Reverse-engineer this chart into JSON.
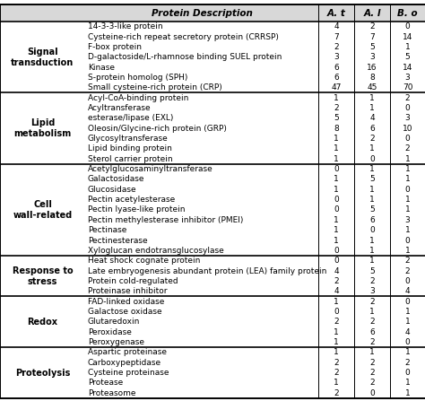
{
  "header": [
    "Protein Description",
    "A. t",
    "A. l",
    "B. o"
  ],
  "categories": [
    {
      "name": "Signal\ntransduction",
      "rows": [
        [
          "14-3-3-like protein",
          "4",
          "2",
          "0"
        ],
        [
          "Cysteine-rich repeat secretory protein (CRRSP)",
          "7",
          "7",
          "14"
        ],
        [
          "F-box protein",
          "2",
          "5",
          "1"
        ],
        [
          "D-galactoside/L-rhamnose binding SUEL protein",
          "3",
          "3",
          "5"
        ],
        [
          "Kinase",
          "6",
          "16",
          "14"
        ],
        [
          "S-protein homolog (SPH)",
          "6",
          "8",
          "3"
        ],
        [
          "Small cysteine-rich protein (CRP)",
          "47",
          "45",
          "70"
        ]
      ]
    },
    {
      "name": "Lipid\nmetabolism",
      "rows": [
        [
          "Acyl-CoA-binding protein",
          "1",
          "1",
          "2"
        ],
        [
          "Acyltransferase",
          "2",
          "1",
          "0"
        ],
        [
          "esterase/lipase (EXL)",
          "5",
          "4",
          "3"
        ],
        [
          "Oleosin/Glycine-rich protein (GRP)",
          "8",
          "6",
          "10"
        ],
        [
          "Glycosyltransferase",
          "1",
          "2",
          "0"
        ],
        [
          "Lipid binding protein",
          "1",
          "1",
          "2"
        ],
        [
          "Sterol carrier protein",
          "1",
          "0",
          "1"
        ]
      ]
    },
    {
      "name": "Cell\nwall-related",
      "rows": [
        [
          "Acetylglucosaminyltransferase",
          "0",
          "1",
          "1"
        ],
        [
          "Galactosidase",
          "1",
          "5",
          "1"
        ],
        [
          "Glucosidase",
          "1",
          "1",
          "0"
        ],
        [
          "Pectin acetylesterase",
          "0",
          "1",
          "1"
        ],
        [
          "Pectin lyase-like protein",
          "0",
          "5",
          "1"
        ],
        [
          "Pectin methylesterase inhibitor (PMEI)",
          "1",
          "6",
          "3"
        ],
        [
          "Pectinase",
          "1",
          "0",
          "1"
        ],
        [
          "Pectinesterase",
          "1",
          "1",
          "0"
        ],
        [
          "Xyloglucan endotransglucosylase",
          "0",
          "1",
          "1"
        ]
      ]
    },
    {
      "name": "Response to\nstress",
      "rows": [
        [
          "Heat shock cognate protein",
          "0",
          "1",
          "2"
        ],
        [
          "Late embryogenesis abundant protein (LEA) family protein",
          "4",
          "5",
          "2"
        ],
        [
          "Protein cold-regulated",
          "2",
          "2",
          "0"
        ],
        [
          "Proteinase inhibitor",
          "4",
          "3",
          "4"
        ]
      ]
    },
    {
      "name": "Redox",
      "rows": [
        [
          "FAD-linked oxidase",
          "1",
          "2",
          "0"
        ],
        [
          "Galactose oxidase",
          "0",
          "1",
          "1"
        ],
        [
          "Glutaredoxin",
          "2",
          "2",
          "1"
        ],
        [
          "Peroxidase",
          "1",
          "6",
          "4"
        ],
        [
          "Peroxygenase",
          "1",
          "2",
          "0"
        ]
      ]
    },
    {
      "name": "Proteolysis",
      "rows": [
        [
          "Aspartic proteinase",
          "1",
          "1",
          "1"
        ],
        [
          "Carboxypeptidase",
          "2",
          "2",
          "2"
        ],
        [
          "Cysteine proteinase",
          "2",
          "2",
          "0"
        ],
        [
          "Protease",
          "1",
          "2",
          "1"
        ],
        [
          "Proteasome",
          "2",
          "0",
          "1"
        ]
      ]
    }
  ],
  "bg_color": "#ffffff",
  "header_bg": "#d8d8d8",
  "line_color": "#000000",
  "text_color": "#000000",
  "font_size": 6.5,
  "header_font_size": 7.5,
  "cat_font_size": 7.0
}
